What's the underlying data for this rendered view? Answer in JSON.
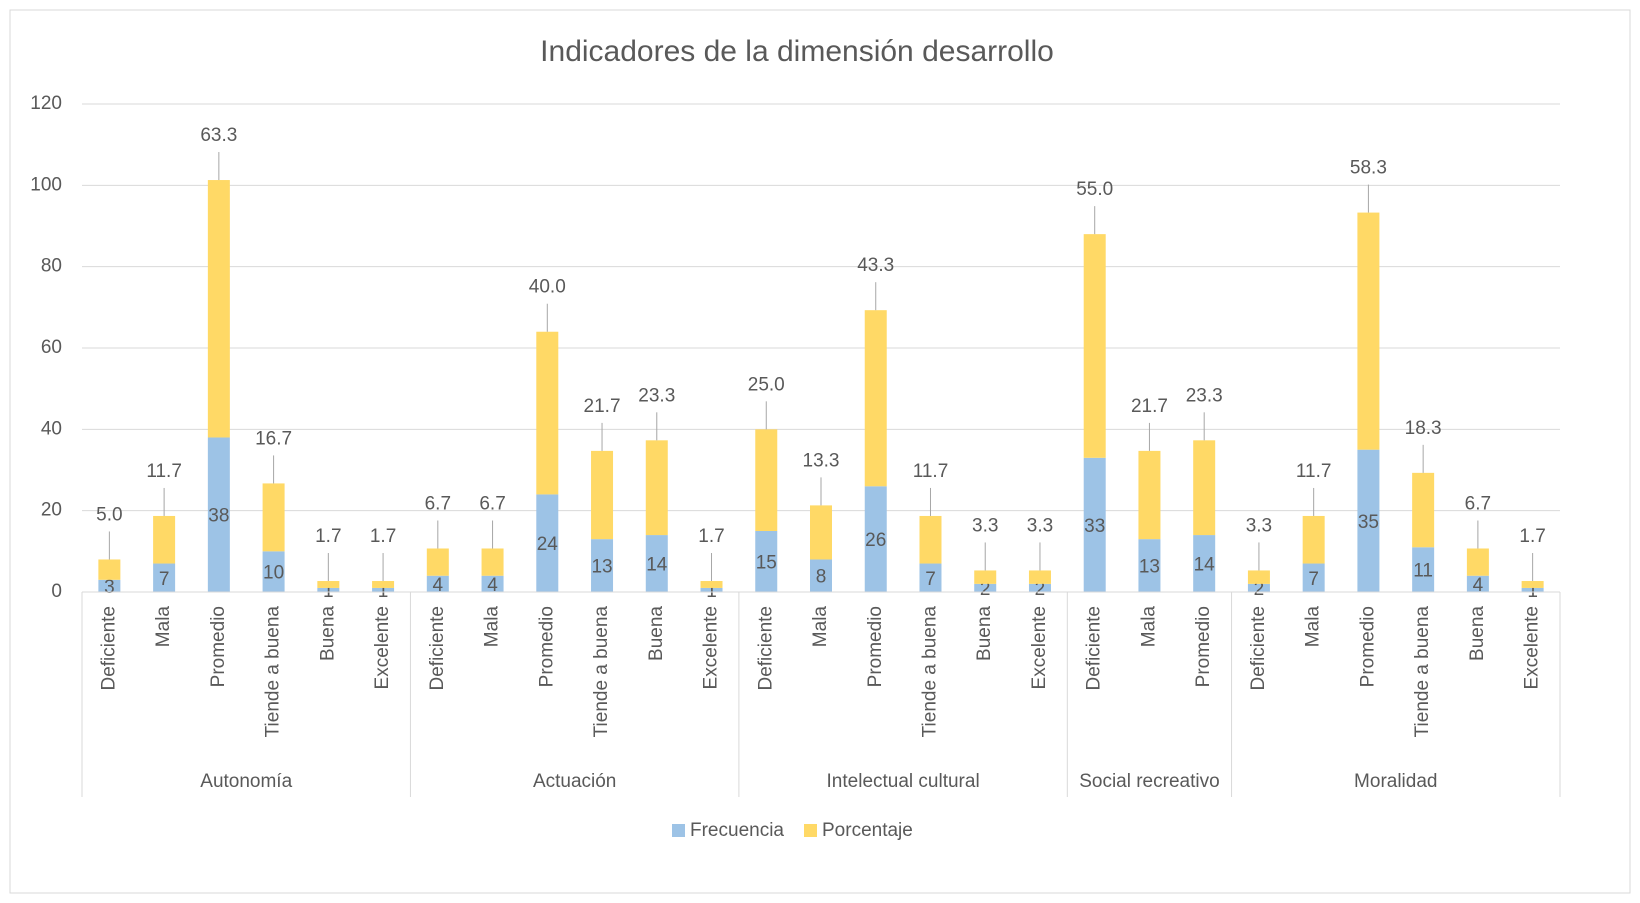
{
  "chart_data": {
    "type": "stacked_bar",
    "title": "Indicadores de la dimensión desarrollo",
    "groups": [
      {
        "label": "Autonomía",
        "categories": [
          "Deficiente",
          "Mala",
          "Promedio",
          "Tiende a buena",
          "Buena",
          "Excelente"
        ]
      },
      {
        "label": "Actuación",
        "categories": [
          "Deficiente",
          "Mala",
          "Promedio",
          "Tiende a buena",
          "Buena",
          "Excelente"
        ]
      },
      {
        "label": "Intelectual cultural",
        "categories": [
          "Deficiente",
          "Mala",
          "Promedio",
          "Tiende a buena",
          "Buena",
          "Excelente"
        ]
      },
      {
        "label": "Social recreativo",
        "categories": [
          "Deficiente",
          "Mala",
          "Promedio"
        ]
      },
      {
        "label": "Moralidad",
        "categories": [
          "Deficiente",
          "Mala",
          "Promedio",
          "Tiende a buena",
          "Buena",
          "Excelente"
        ]
      }
    ],
    "series": [
      {
        "name": "Frecuencia",
        "color": "#9dc3e6",
        "values": [
          3,
          7,
          38,
          10,
          1,
          1,
          4,
          4,
          24,
          13,
          14,
          1,
          15,
          8,
          26,
          7,
          2,
          2,
          33,
          13,
          14,
          2,
          7,
          35,
          11,
          4,
          1
        ]
      },
      {
        "name": "Porcentaje",
        "color": "#ffd966",
        "values": [
          5.0,
          11.7,
          63.3,
          16.7,
          1.7,
          1.7,
          6.7,
          6.7,
          40.0,
          21.7,
          23.3,
          1.7,
          25.0,
          13.3,
          43.3,
          11.7,
          3.3,
          3.3,
          55.0,
          21.7,
          23.3,
          3.3,
          11.7,
          58.3,
          18.3,
          6.7,
          1.7
        ],
        "value_labels": [
          "5.0",
          "11.7",
          "63.3",
          "16.7",
          "1.7",
          "1.7",
          "6.7",
          "6.7",
          "40.0",
          "21.7",
          "23.3",
          "1.7",
          "25.0",
          "13.3",
          "43.3",
          "11.7",
          "3.3",
          "3.3",
          "55.0",
          "21.7",
          "23.3",
          "3.3",
          "11.7",
          "58.3",
          "18.3",
          "6.7",
          "1.7"
        ]
      }
    ],
    "ylim": [
      0,
      120
    ],
    "yticks": [
      0,
      20,
      40,
      60,
      80,
      100,
      120
    ],
    "grid": true,
    "legend": "bottom"
  }
}
